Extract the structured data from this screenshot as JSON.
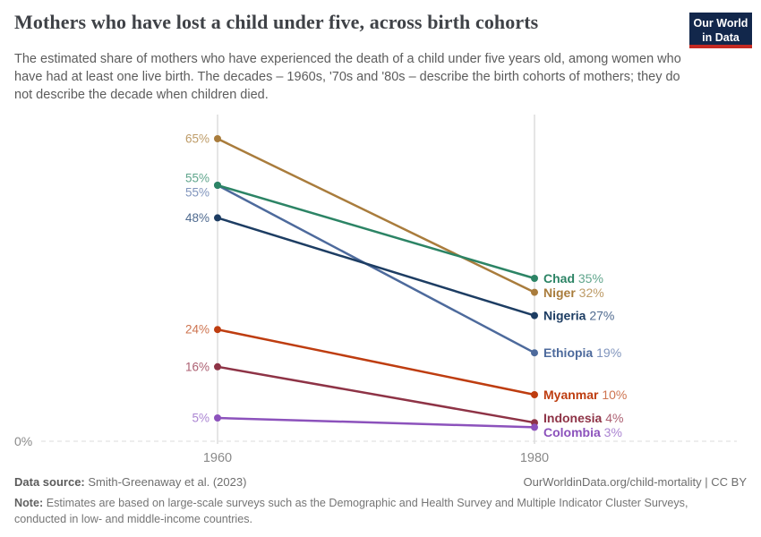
{
  "header": {
    "title": "Mothers who have lost a child under five, across birth cohorts",
    "subtitle": "The estimated share of mothers who have experienced the death of a child under five years old, among women who have had at least one live birth. The decades – 1960s, '70s and '80s – describe the birth cohorts of mothers; they do not describe the decade when children died.",
    "logo": {
      "line1": "Our World",
      "line2": "in Data",
      "bg": "#12274b",
      "stripe": "#c52a22"
    }
  },
  "chart_data": {
    "type": "line",
    "subtype": "slope",
    "title": "Mothers who have lost a child under five, across birth cohorts",
    "unit": "%",
    "x": [
      "1960",
      "1980"
    ],
    "x_axis_labels": [
      "1960",
      "1980"
    ],
    "baseline_label": "0%",
    "ylim": [
      0,
      68
    ],
    "grid": "zero-line-dashed",
    "legend_position": "end-labels",
    "series": [
      {
        "name": "Niger",
        "values": [
          65,
          32
        ],
        "color": "#A97C3C",
        "light": "#BE9C68"
      },
      {
        "name": "Ethiopia",
        "values": [
          55,
          19
        ],
        "color": "#4D6A9C",
        "light": "#8195BD"
      },
      {
        "name": "Nigeria",
        "values": [
          48,
          27
        ],
        "color": "#1D3D63",
        "light": "#4F6A8F"
      },
      {
        "name": "Myanmar",
        "values": [
          24,
          10
        ],
        "color": "#BE3D10",
        "light": "#CE7450"
      },
      {
        "name": "Indonesia",
        "values": [
          16,
          4
        ],
        "color": "#8E3346",
        "light": "#AC5F71"
      },
      {
        "name": "Chad",
        "values": [
          55,
          35
        ],
        "color": "#2C8465",
        "light": "#61A68D"
      },
      {
        "name": "Colombia",
        "values": [
          5,
          3
        ],
        "color": "#8C52BC",
        "light": "#AB85D2"
      }
    ],
    "axis_color": "#cbcbcb",
    "zero_line_color": "#dbdbdb",
    "tick_label_color": "#8a8a8a"
  },
  "footer": {
    "source_label": "Data source:",
    "source_value": "Smith-Greenaway et al. (2023)",
    "link": "OurWorldinData.org/child-mortality | CC BY",
    "note_label": "Note:",
    "note_value": "Estimates are based on large-scale surveys such as the Demographic and Health Survey and Multiple Indicator Cluster Surveys, conducted in low- and middle-income countries."
  }
}
